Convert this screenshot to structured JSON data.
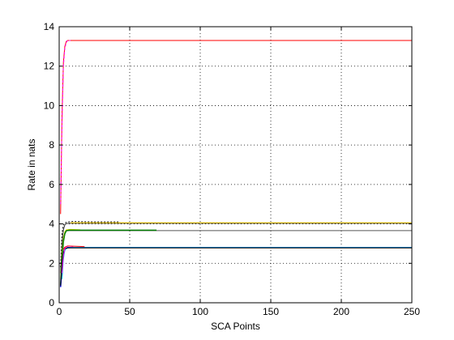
{
  "chart_data": {
    "type": "line",
    "title": "",
    "xlabel": "SCA Points",
    "ylabel": "Rate in nats",
    "xlim": [
      0,
      250
    ],
    "ylim": [
      0,
      14
    ],
    "xticks": [
      0,
      50,
      100,
      150,
      200,
      250
    ],
    "yticks": [
      0,
      2,
      4,
      6,
      8,
      10,
      12,
      14
    ],
    "grid": true,
    "grid_style": "dotted",
    "legend": "none",
    "series": [
      {
        "color": "#ff0000",
        "dash": "",
        "width": 1,
        "x": [
          1,
          2,
          3,
          4,
          5,
          6,
          8,
          250
        ],
        "y": [
          4.5,
          9.5,
          12.2,
          13.0,
          13.25,
          13.3,
          13.3,
          13.3
        ]
      },
      {
        "color": "#ff00ff",
        "dash": "3,2",
        "width": 1,
        "x": [
          1,
          2,
          3,
          4,
          5,
          6,
          8
        ],
        "y": [
          5.0,
          9.0,
          12.0,
          12.9,
          13.2,
          13.3,
          13.3
        ]
      },
      {
        "color": "#333333",
        "dash": "",
        "width": 1,
        "x": [
          1,
          2,
          3,
          4,
          5,
          7,
          250
        ],
        "y": [
          1.5,
          3.0,
          3.7,
          3.95,
          4.02,
          4.03,
          4.03
        ]
      },
      {
        "color": "#ffd400",
        "dash": "",
        "width": 1,
        "x": [
          8,
          40,
          250
        ],
        "y": [
          4.06,
          4.06,
          4.06
        ]
      },
      {
        "color": "#000000",
        "dash": "2,2",
        "width": 1,
        "x": [
          1,
          2,
          3,
          4,
          6,
          10,
          25,
          42
        ],
        "y": [
          1.8,
          3.5,
          3.95,
          4.05,
          4.1,
          4.12,
          4.1,
          4.1
        ]
      },
      {
        "color": "#e8e000",
        "dash": "",
        "width": 1,
        "x": [
          1,
          2,
          3,
          4,
          5,
          8,
          15
        ],
        "y": [
          1.2,
          2.6,
          3.3,
          3.6,
          3.7,
          3.72,
          3.7
        ]
      },
      {
        "color": "#555555",
        "dash": "",
        "width": 1,
        "x": [
          5,
          20,
          250
        ],
        "y": [
          3.66,
          3.66,
          3.66
        ]
      },
      {
        "color": "#007a00",
        "dash": "",
        "width": 1.5,
        "x": [
          1,
          2,
          3,
          4,
          5,
          7,
          20,
          69
        ],
        "y": [
          0.9,
          2.2,
          3.1,
          3.5,
          3.65,
          3.68,
          3.68,
          3.68
        ]
      },
      {
        "color": "#0000ff",
        "dash": "",
        "width": 1.5,
        "x": [
          1,
          2,
          3,
          4,
          6,
          10,
          250
        ],
        "y": [
          0.8,
          1.8,
          2.4,
          2.7,
          2.8,
          2.8,
          2.8
        ]
      },
      {
        "color": "#00bfbf",
        "dash": "",
        "width": 1,
        "x": [
          2,
          3,
          4,
          6,
          10,
          250
        ],
        "y": [
          1.2,
          2.2,
          2.7,
          2.78,
          2.8,
          2.8
        ]
      },
      {
        "color": "#000000",
        "dash": "",
        "width": 1,
        "x": [
          1,
          2,
          3,
          4,
          6,
          10,
          250
        ],
        "y": [
          0.85,
          2.0,
          2.55,
          2.75,
          2.78,
          2.78,
          2.78
        ]
      },
      {
        "color": "#ff00ff",
        "dash": "",
        "width": 1,
        "x": [
          2,
          3,
          4,
          5,
          7,
          10
        ],
        "y": [
          1.5,
          2.4,
          2.75,
          2.85,
          2.88,
          2.85
        ]
      },
      {
        "color": "#ff0000",
        "dash": "",
        "width": 1,
        "x": [
          3,
          4,
          6,
          10,
          18
        ],
        "y": [
          2.7,
          2.82,
          2.88,
          2.87,
          2.85
        ]
      }
    ]
  }
}
